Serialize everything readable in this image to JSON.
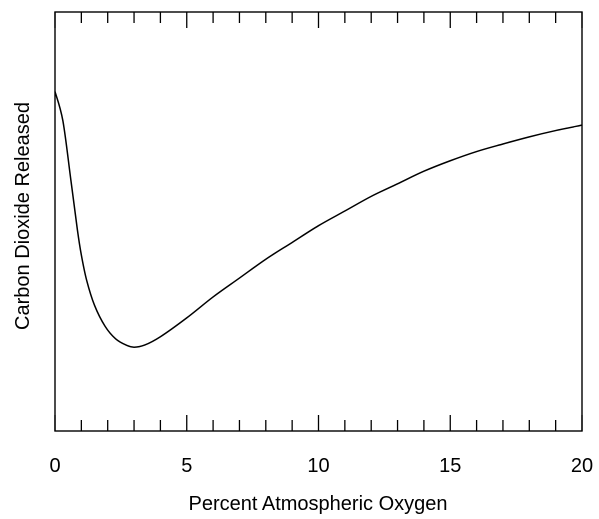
{
  "chart_data": {
    "type": "line",
    "title": "",
    "xlabel": "Percent Atmospheric Oxygen",
    "ylabel": "Carbon Dioxide Released",
    "xlim": [
      0,
      20
    ],
    "ylim": [
      0,
      1
    ],
    "x_ticks": [
      0,
      5,
      10,
      15,
      20
    ],
    "x_tick_labels": [
      "0",
      "5",
      "10",
      "15",
      "20"
    ],
    "y_tick_labels": [],
    "grid": false,
    "series": [
      {
        "x": [
          0,
          0.3,
          0.6,
          0.85,
          1.0,
          1.2,
          1.5,
          1.9,
          2.3,
          2.7,
          3.0,
          3.4,
          4.0,
          5.0,
          6.0,
          7.0,
          8.0,
          9.0,
          10.0,
          11.0,
          12.0,
          13.0,
          14.0,
          15.0,
          16.0,
          17.0,
          18.0,
          19.0,
          20.0
        ],
        "y": [
          0.81,
          0.74,
          0.6,
          0.48,
          0.42,
          0.36,
          0.3,
          0.25,
          0.22,
          0.205,
          0.2,
          0.205,
          0.225,
          0.27,
          0.32,
          0.365,
          0.41,
          0.45,
          0.49,
          0.525,
          0.56,
          0.59,
          0.62,
          0.645,
          0.667,
          0.685,
          0.702,
          0.717,
          0.73
        ]
      }
    ]
  }
}
